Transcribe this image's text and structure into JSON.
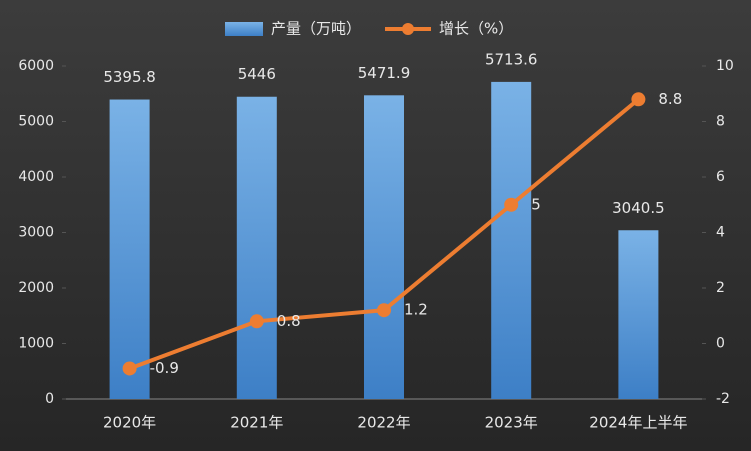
{
  "chart_data": {
    "type": "bar-line",
    "categories": [
      "2020年",
      "2021年",
      "2022年",
      "2023年",
      "2024年上半年"
    ],
    "series": [
      {
        "name": "产量（万吨）",
        "type": "bar",
        "color": "#5b9bd5",
        "values": [
          5395.8,
          5446,
          5471.9,
          5713.6,
          3040.5
        ]
      },
      {
        "name": "增长（%）",
        "type": "line",
        "color": "#ed7d31",
        "axis": "y2",
        "values": [
          -0.9,
          0.8,
          1.2,
          5,
          8.8
        ]
      }
    ],
    "ylim": [
      0,
      6000
    ],
    "yticks": [
      0,
      1000,
      2000,
      3000,
      4000,
      5000,
      6000
    ],
    "y2lim": [
      -2,
      10
    ],
    "y2ticks": [
      -2,
      0,
      2,
      4,
      6,
      8,
      10
    ],
    "legend": "top"
  }
}
